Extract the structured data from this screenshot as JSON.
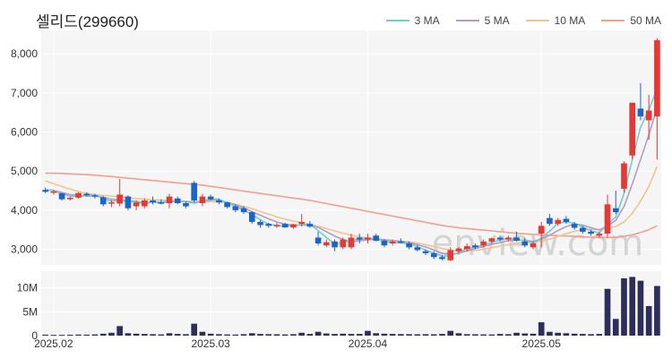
{
  "chart_data": {
    "type": "candlestick",
    "title": "셀리드(299660)",
    "watermark": "enview.com",
    "up_color": "#e53935",
    "down_color": "#1e63c8",
    "volume_color": "#2d2e5a",
    "ma_series": [
      {
        "name": "3 MA",
        "color": "#6fcfd0"
      },
      {
        "name": "5 MA",
        "color": "#b49ac4"
      },
      {
        "name": "10 MA",
        "color": "#f2c48c"
      },
      {
        "name": "50 MA",
        "color": "#f2a08e"
      }
    ],
    "price_axis": {
      "ylim": [
        2600,
        8600
      ],
      "ticks": [
        3000,
        4000,
        5000,
        6000,
        7000,
        8000
      ],
      "tick_labels": [
        "3,000",
        "4,000",
        "5,000",
        "6,000",
        "7,000",
        "8,000"
      ]
    },
    "volume_axis": {
      "ylim": [
        0,
        13500000
      ],
      "ticks": [
        0,
        5000000,
        10000000
      ],
      "tick_labels": [
        "0",
        "5M",
        "10M"
      ]
    },
    "x_tick_labels": [
      {
        "index": 1,
        "label": "2025.02"
      },
      {
        "index": 20,
        "label": "2025.03"
      },
      {
        "index": 39,
        "label": "2025.04"
      },
      {
        "index": 60,
        "label": "2025.05"
      }
    ],
    "ohlc": [
      [
        4520,
        4580,
        4440,
        4470
      ],
      [
        4470,
        4520,
        4400,
        4480
      ],
      [
        4430,
        4450,
        4250,
        4280
      ],
      [
        4280,
        4350,
        4250,
        4320
      ],
      [
        4320,
        4460,
        4300,
        4440
      ],
      [
        4420,
        4460,
        4360,
        4380
      ],
      [
        4380,
        4420,
        4300,
        4350
      ],
      [
        4330,
        4360,
        4100,
        4150
      ],
      [
        4180,
        4260,
        4080,
        4200
      ],
      [
        4170,
        4800,
        4100,
        4400
      ],
      [
        4350,
        4380,
        4000,
        4050
      ],
      [
        4100,
        4250,
        4000,
        4200
      ],
      [
        4100,
        4300,
        4050,
        4250
      ],
      [
        4250,
        4350,
        4150,
        4200
      ],
      [
        4200,
        4280,
        4150,
        4180
      ],
      [
        4180,
        4420,
        4050,
        4350
      ],
      [
        4300,
        4350,
        4150,
        4180
      ],
      [
        4180,
        4220,
        4050,
        4100
      ],
      [
        4700,
        4750,
        4200,
        4250
      ],
      [
        4180,
        4420,
        4100,
        4350
      ],
      [
        4350,
        4400,
        4250,
        4280
      ],
      [
        4250,
        4300,
        4150,
        4200
      ],
      [
        4200,
        4220,
        4050,
        4080
      ],
      [
        4100,
        4150,
        3950,
        4000
      ],
      [
        4050,
        4100,
        3900,
        3950
      ],
      [
        3950,
        3980,
        3650,
        3700
      ],
      [
        3700,
        3750,
        3550,
        3620
      ],
      [
        3650,
        3680,
        3550,
        3600
      ],
      [
        3600,
        3680,
        3550,
        3620
      ],
      [
        3650,
        3680,
        3550,
        3560
      ],
      [
        3560,
        3650,
        3520,
        3640
      ],
      [
        3650,
        3900,
        3580,
        3700
      ],
      [
        3650,
        3720,
        3550,
        3580
      ],
      [
        3300,
        3450,
        3100,
        3150
      ],
      [
        3100,
        3250,
        3050,
        3180
      ],
      [
        3200,
        3250,
        2950,
        3050
      ],
      [
        3050,
        3300,
        3000,
        3250
      ],
      [
        3050,
        3400,
        3000,
        3300
      ],
      [
        3300,
        3400,
        3150,
        3250
      ],
      [
        3250,
        3400,
        3150,
        3300
      ],
      [
        3350,
        3400,
        3200,
        3220
      ],
      [
        3220,
        3250,
        3050,
        3100
      ],
      [
        3150,
        3250,
        3100,
        3200
      ],
      [
        3200,
        3280,
        3150,
        3180
      ],
      [
        3150,
        3200,
        3000,
        3050
      ],
      [
        3050,
        3100,
        2950,
        2980
      ],
      [
        2950,
        3000,
        2850,
        2900
      ],
      [
        2900,
        2950,
        2750,
        2800
      ],
      [
        2800,
        2850,
        2720,
        2750
      ],
      [
        2720,
        3050,
        2700,
        2980
      ],
      [
        2950,
        3050,
        2900,
        3020
      ],
      [
        3000,
        3150,
        2950,
        3080
      ],
      [
        3100,
        3150,
        3000,
        3050
      ],
      [
        3100,
        3250,
        3050,
        3200
      ],
      [
        3200,
        3300,
        3150,
        3280
      ],
      [
        3300,
        3350,
        3200,
        3250
      ],
      [
        3250,
        3350,
        3200,
        3300
      ],
      [
        3300,
        3450,
        3200,
        3220
      ],
      [
        3200,
        3280,
        3050,
        3100
      ],
      [
        3050,
        3200,
        3000,
        3150
      ],
      [
        3400,
        3700,
        3050,
        3600
      ],
      [
        3800,
        3900,
        3600,
        3650
      ],
      [
        3650,
        3800,
        3600,
        3750
      ],
      [
        3780,
        3850,
        3650,
        3700
      ],
      [
        3650,
        3700,
        3500,
        3550
      ],
      [
        3550,
        3600,
        3400,
        3450
      ],
      [
        3450,
        3500,
        3350,
        3400
      ],
      [
        3350,
        3450,
        3300,
        3400
      ],
      [
        3400,
        4400,
        3300,
        4150
      ],
      [
        4050,
        4500,
        3900,
        3950
      ],
      [
        4550,
        5250,
        4450,
        5200
      ],
      [
        5400,
        6750,
        5300,
        6750
      ],
      [
        6600,
        7250,
        6300,
        6400
      ],
      [
        6300,
        6950,
        5800,
        6550
      ],
      [
        6400,
        8400,
        5300,
        8350
      ]
    ],
    "volume": [
      200000,
      150000,
      150000,
      180000,
      220000,
      200000,
      250000,
      400000,
      600000,
      2000000,
      500000,
      400000,
      350000,
      300000,
      250000,
      500000,
      350000,
      300000,
      2500000,
      800000,
      400000,
      300000,
      250000,
      220000,
      300000,
      500000,
      350000,
      300000,
      280000,
      250000,
      300000,
      600000,
      350000,
      800000,
      450000,
      350000,
      400000,
      350000,
      350000,
      1000000,
      500000,
      400000,
      350000,
      320000,
      300000,
      280000,
      300000,
      280000,
      350000,
      1000000,
      500000,
      300000,
      280000,
      250000,
      240000,
      350000,
      300000,
      600000,
      450000,
      400000,
      2800000,
      800000,
      600000,
      500000,
      400000,
      350000,
      300000,
      350000,
      9800000,
      3500000,
      12000000,
      12300000,
      11500000,
      6200000,
      10400000
    ],
    "ma3_approx": [
      4520,
      4500,
      4410,
      4360,
      4350,
      4380,
      4390,
      4290,
      4230,
      4250,
      4220,
      4220,
      4150,
      4220,
      4210,
      4240,
      4240,
      4210,
      4180,
      4230,
      4290,
      4280,
      4190,
      4090,
      4010,
      3880,
      3760,
      3640,
      3610,
      3590,
      3610,
      3630,
      3640,
      3480,
      3300,
      3130,
      3160,
      3240,
      3260,
      3280,
      3260,
      3200,
      3170,
      3160,
      3140,
      3070,
      2980,
      2900,
      2820,
      2840,
      2920,
      3030,
      3050,
      3110,
      3180,
      3240,
      3280,
      3260,
      3210,
      3160,
      3290,
      3460,
      3670,
      3700,
      3670,
      3570,
      3470,
      3420,
      3650,
      3830,
      4430,
      5300,
      6120,
      6570,
      7100
    ],
    "ma5_approx": [
      4520,
      4510,
      4450,
      4400,
      4370,
      4360,
      4370,
      4330,
      4280,
      4270,
      4240,
      4230,
      4190,
      4210,
      4190,
      4220,
      4230,
      4220,
      4200,
      4230,
      4260,
      4260,
      4200,
      4140,
      4060,
      3960,
      3870,
      3780,
      3700,
      3640,
      3620,
      3620,
      3620,
      3560,
      3450,
      3340,
      3250,
      3190,
      3220,
      3240,
      3260,
      3240,
      3220,
      3200,
      3170,
      3120,
      3060,
      2980,
      2900,
      2880,
      2900,
      2960,
      3020,
      3070,
      3130,
      3170,
      3220,
      3240,
      3230,
      3200,
      3260,
      3360,
      3480,
      3580,
      3650,
      3620,
      3550,
      3490,
      3600,
      3740,
      4100,
      4670,
      5300,
      5930,
      6640
    ],
    "ma10_approx": [
      4750,
      4680,
      4610,
      4540,
      4480,
      4430,
      4400,
      4380,
      4360,
      4340,
      4320,
      4300,
      4280,
      4270,
      4260,
      4250,
      4240,
      4230,
      4220,
      4220,
      4220,
      4210,
      4190,
      4150,
      4100,
      4040,
      3970,
      3900,
      3830,
      3770,
      3720,
      3680,
      3640,
      3590,
      3530,
      3470,
      3410,
      3360,
      3320,
      3290,
      3270,
      3250,
      3230,
      3210,
      3190,
      3160,
      3120,
      3070,
      3020,
      2980,
      2960,
      2960,
      2970,
      3000,
      3040,
      3080,
      3120,
      3160,
      3180,
      3180,
      3210,
      3260,
      3330,
      3400,
      3460,
      3500,
      3510,
      3510,
      3530,
      3580,
      3700,
      3920,
      4230,
      4610,
      5120
    ],
    "ma50_approx": [
      4950,
      4945,
      4940,
      4930,
      4920,
      4910,
      4895,
      4880,
      4860,
      4840,
      4820,
      4800,
      4780,
      4760,
      4740,
      4720,
      4700,
      4680,
      4660,
      4640,
      4610,
      4580,
      4550,
      4520,
      4490,
      4460,
      4430,
      4400,
      4370,
      4340,
      4310,
      4280,
      4250,
      4210,
      4170,
      4130,
      4090,
      4050,
      4010,
      3970,
      3930,
      3890,
      3850,
      3810,
      3770,
      3730,
      3690,
      3650,
      3610,
      3580,
      3550,
      3530,
      3510,
      3490,
      3470,
      3450,
      3430,
      3410,
      3395,
      3380,
      3370,
      3360,
      3350,
      3340,
      3330,
      3320,
      3310,
      3300,
      3300,
      3310,
      3330,
      3370,
      3430,
      3500,
      3600
    ]
  }
}
